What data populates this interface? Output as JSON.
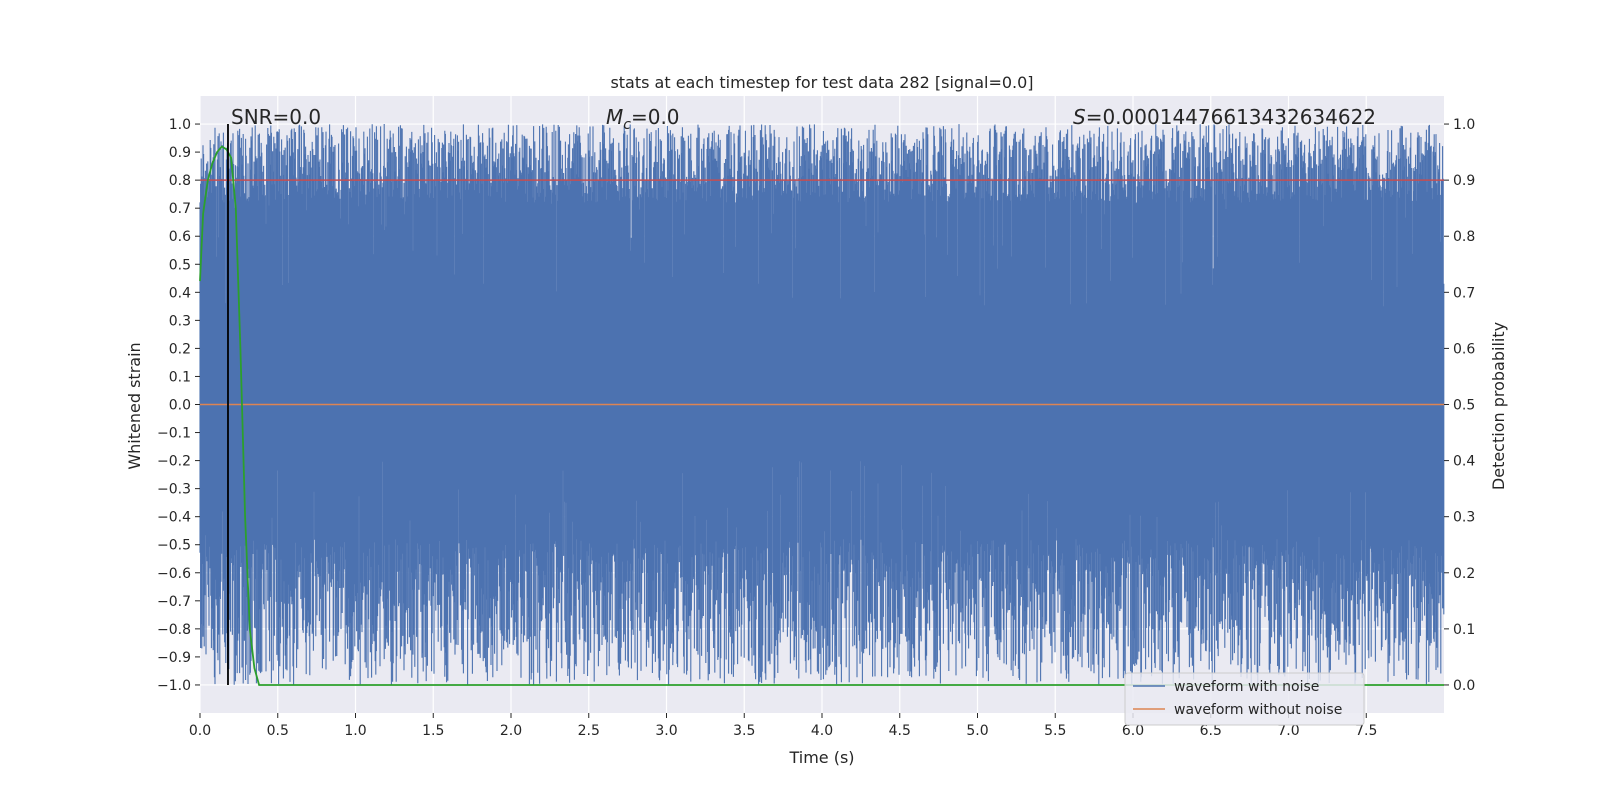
{
  "chart_data": {
    "type": "line",
    "title": "stats at each timestep for test data 282 [signal=0.0]",
    "xlabel": "Time (s)",
    "ylabel_left": "Whitened strain",
    "ylabel_right": "Detection probability",
    "xlim": [
      0.0,
      8.0
    ],
    "ylim_left": [
      -1.1,
      1.1
    ],
    "ylim_right": [
      -0.05,
      1.05
    ],
    "x_ticks": [
      0.0,
      0.5,
      1.0,
      1.5,
      2.0,
      2.5,
      3.0,
      3.5,
      4.0,
      4.5,
      5.0,
      5.5,
      6.0,
      6.5,
      7.0,
      7.5
    ],
    "x_tick_labels": [
      "0.0",
      "0.5",
      "1.0",
      "1.5",
      "2.0",
      "2.5",
      "3.0",
      "3.5",
      "4.0",
      "4.5",
      "5.0",
      "5.5",
      "6.0",
      "6.5",
      "7.0",
      "7.5"
    ],
    "y_left_ticks": [
      1.0,
      0.9,
      0.8,
      0.7,
      0.6,
      0.5,
      0.4,
      0.3,
      0.2,
      0.1,
      0.0,
      -0.1,
      -0.2,
      -0.3,
      -0.4,
      -0.5,
      -0.6,
      -0.7,
      -0.8,
      -0.9,
      -1.0
    ],
    "y_left_tick_labels": [
      "1.0",
      "0.9",
      "0.8",
      "0.7",
      "0.6",
      "0.5",
      "0.4",
      "0.3",
      "0.2",
      "0.1",
      "0.0",
      "−0.1",
      "−0.2",
      "−0.3",
      "−0.4",
      "−0.5",
      "−0.6",
      "−0.7",
      "−0.8",
      "−0.9",
      "−1.0"
    ],
    "y_right_ticks": [
      1.0,
      0.9,
      0.8,
      0.7,
      0.6,
      0.5,
      0.4,
      0.3,
      0.2,
      0.1,
      0.0
    ],
    "y_right_tick_labels": [
      "1.0",
      "0.9",
      "0.8",
      "0.7",
      "0.6",
      "0.5",
      "0.4",
      "0.3",
      "0.2",
      "0.1",
      "0.0"
    ],
    "grid": true,
    "annotations": {
      "snr": "SNR=0.0",
      "mc_symbol": "M",
      "mc_subscript": "c",
      "mc_value": "=0.0",
      "s_symbol": "S",
      "s_value": "=0.00014476613432634622"
    },
    "vertical_marker_x": 0.18,
    "series": [
      {
        "name": "waveform with noise",
        "color": "#4c72b0",
        "description_range": [
          -1.0,
          1.0
        ],
        "dense_noise": true
      },
      {
        "name": "waveform without noise",
        "color": "#dd8452",
        "constant_value_left": 0.0
      },
      {
        "color": "#2ca02c",
        "axis": "right",
        "x": [
          0.0,
          0.02,
          0.05,
          0.08,
          0.11,
          0.14,
          0.17,
          0.2,
          0.23,
          0.26,
          0.29,
          0.32,
          0.35,
          0.38,
          0.42,
          8.0
        ],
        "y": [
          0.72,
          0.84,
          0.9,
          0.93,
          0.95,
          0.96,
          0.955,
          0.94,
          0.85,
          0.6,
          0.3,
          0.1,
          0.03,
          0.0,
          0.0,
          0.0
        ]
      },
      {
        "color": "#c44e52",
        "axis": "right",
        "constant_value": 0.9
      }
    ],
    "legend_position": "lower-right",
    "colors": {
      "plot_background": "#eaeaf2",
      "grid": "#ffffff",
      "noise": "#4c72b0",
      "clean": "#dd8452",
      "probability": "#2ca02c",
      "threshold": "#c44e52",
      "marker": "#000000"
    }
  }
}
